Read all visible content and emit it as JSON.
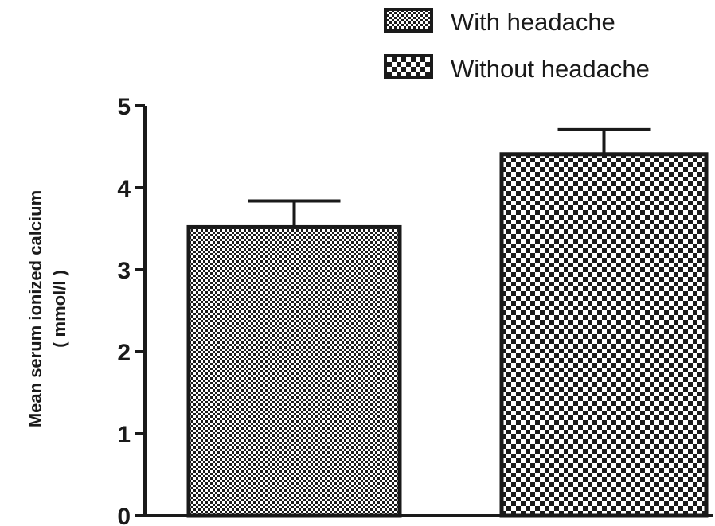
{
  "chart_data": {
    "type": "bar",
    "categories": [
      "With headache",
      "Without headache"
    ],
    "series": [
      {
        "name": "With headache",
        "value": 3.52,
        "error": 0.32,
        "pattern": "fine-checker"
      },
      {
        "name": "Without headache",
        "value": 4.41,
        "error": 0.3,
        "pattern": "coarse-checker"
      }
    ],
    "xlabel": "",
    "ylabel": "Mean serum ionized calcium",
    "ylabel_unit": "( mmol/l )",
    "ylim": [
      0,
      5
    ],
    "yticks": [
      0,
      1,
      2,
      3,
      4,
      5
    ],
    "grid": false,
    "legend_position": "top-right",
    "colors": {
      "ink": "#1a1a1a",
      "background": "#ffffff"
    }
  }
}
